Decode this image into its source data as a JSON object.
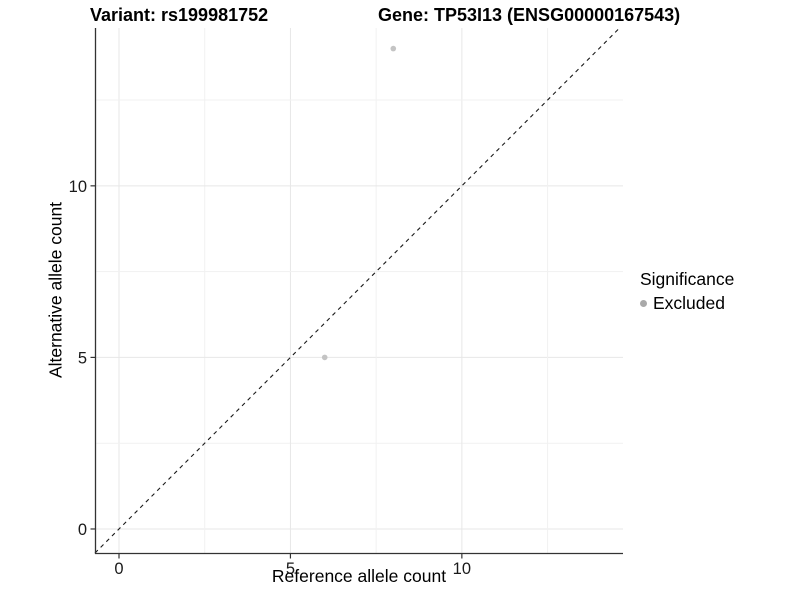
{
  "header": {
    "variant_title": "Variant: rs199981752",
    "gene_title": "Gene: TP53I13 (ENSG00000167543)"
  },
  "legend": {
    "title": "Significance",
    "items": [
      {
        "label": "Excluded",
        "marker_color": "#a9a9a9"
      }
    ]
  },
  "chart_data": {
    "type": "scatter",
    "title": "",
    "xlabel": "Reference allele count",
    "ylabel": "Alternative allele count",
    "xlim": [
      -0.7,
      14.7
    ],
    "ylim": [
      -0.7,
      14.6
    ],
    "x_ticks": [
      0,
      5,
      10
    ],
    "y_ticks": [
      0,
      5,
      10
    ],
    "grid": true,
    "grid_interval": 2.5,
    "legend_position": "right",
    "series": [
      {
        "name": "Excluded",
        "color": "#c4c4c4",
        "points": [
          {
            "x": 6,
            "y": 5
          },
          {
            "x": 8,
            "y": 14
          }
        ]
      }
    ],
    "reference_line": {
      "kind": "identity",
      "from": -0.7,
      "to": 14.6,
      "style": "dashed",
      "color": "#1a1a1a"
    }
  },
  "colors": {
    "background": "#ffffff",
    "grid_major": "#e7e7e7",
    "grid_minor": "#f1f1f1",
    "axis_line": "#333333",
    "tick_text": "#1a1a1a"
  }
}
